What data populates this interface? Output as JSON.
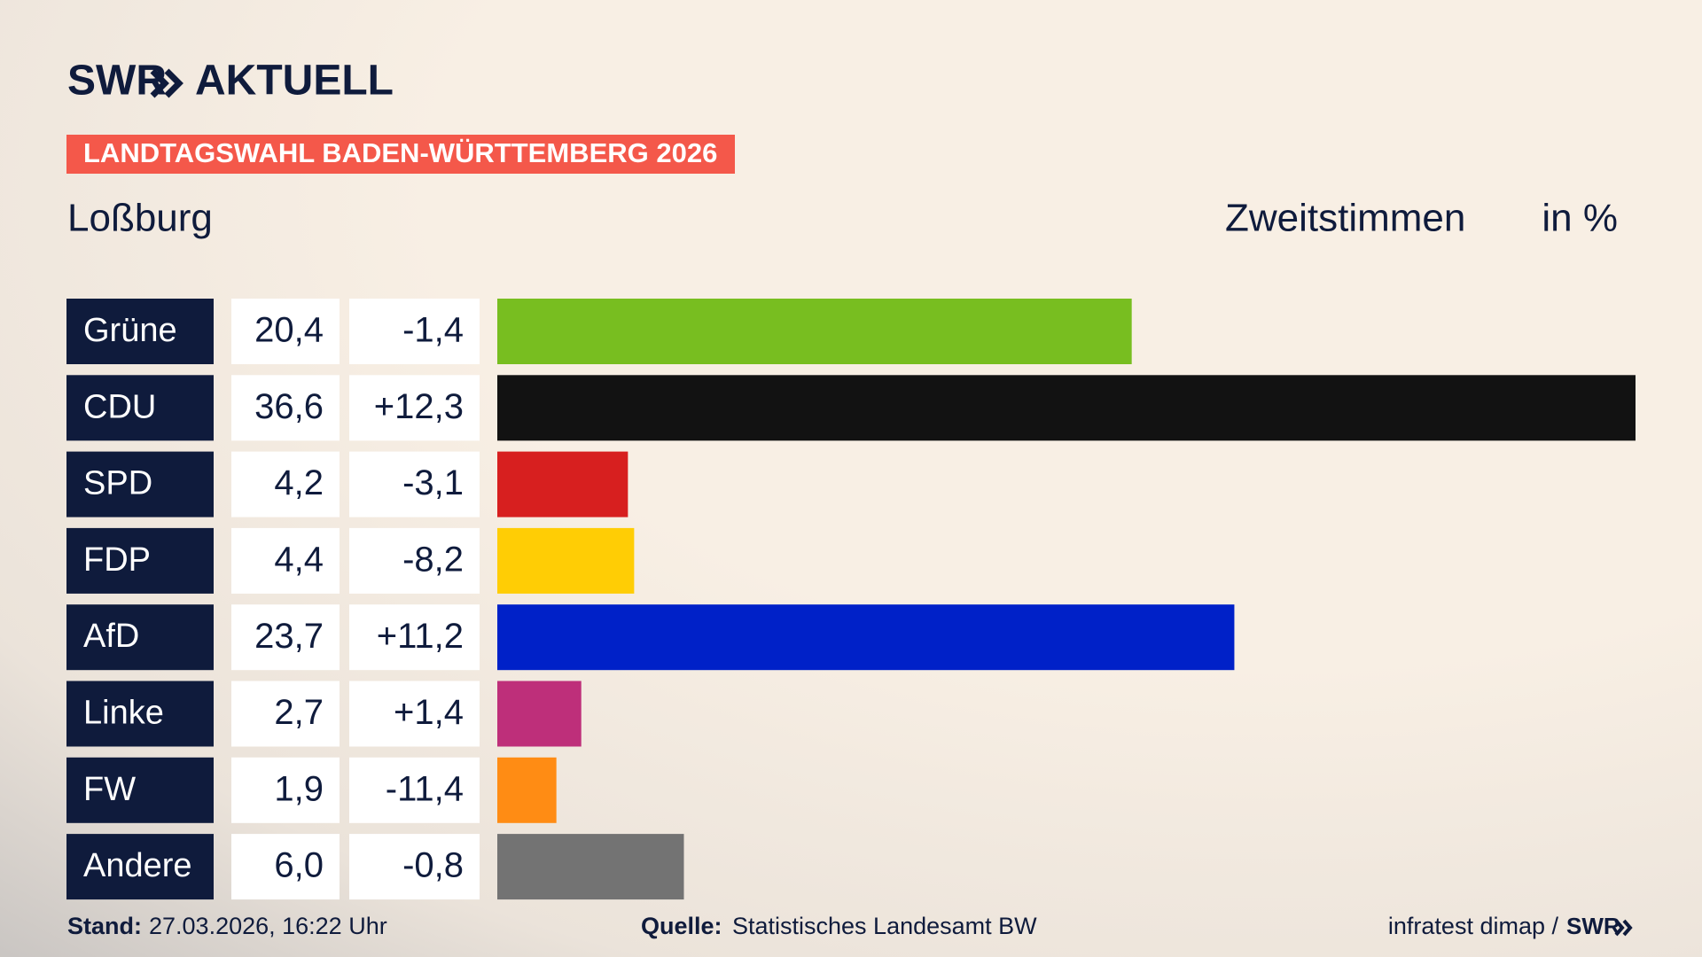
{
  "chart_data": {
    "type": "bar",
    "brand": "SWR",
    "brand_product": "AKTUELL",
    "kicker": "LANDTAGSWAHL BADEN-WÜRTTEMBERG 2026",
    "title": "Loßburg",
    "subtitle": "Zweitstimmen",
    "unit": "in %",
    "categories": [
      "Grüne",
      "CDU",
      "SPD",
      "FDP",
      "AfD",
      "Linke",
      "FW",
      "Andere"
    ],
    "values": [
      20.4,
      36.6,
      4.2,
      4.4,
      23.7,
      2.7,
      1.9,
      6.0
    ],
    "value_labels": [
      "20,4",
      "36,6",
      "4,2",
      "4,4",
      "23,7",
      "2,7",
      "1,9",
      "6,0"
    ],
    "changes": [
      "-1,4",
      "+12,3",
      "-3,1",
      "-8,2",
      "+11,2",
      "+1,4",
      "-11,4",
      "-0,8"
    ],
    "colors": [
      "#78be20",
      "#121212",
      "#d71f1f",
      "#ffcd05",
      "#0021c8",
      "#be2f7a",
      "#ff8c14",
      "#737373"
    ],
    "stand_label": "Stand:",
    "stand": "27.03.2026, 16:22 Uhr",
    "source_label": "Quelle:",
    "source": "Statistisches Landesamt BW",
    "credit": "infratest dimap /",
    "credit_brand": "SWR"
  }
}
